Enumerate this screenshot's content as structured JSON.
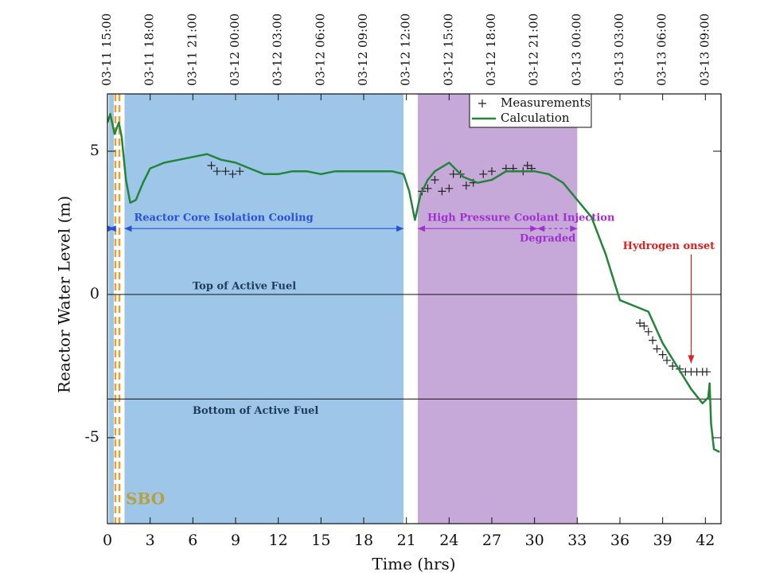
{
  "chart_data": {
    "type": "line",
    "xlabel": "Time (hrs)",
    "ylabel": "Reactor Water Level (m)",
    "xlim": [
      0,
      43.1
    ],
    "ylim": [
      -8,
      7
    ],
    "xticks": [
      0,
      3,
      6,
      9,
      12,
      15,
      18,
      21,
      24,
      27,
      30,
      33,
      36,
      39,
      42
    ],
    "yticks": [
      -5,
      0,
      5
    ],
    "x2ticks": [
      {
        "value": 0,
        "label": "03-11 15:00"
      },
      {
        "value": 3,
        "label": "03-11 18:00"
      },
      {
        "value": 6,
        "label": "03-11 21:00"
      },
      {
        "value": 9,
        "label": "03-12 00:00"
      },
      {
        "value": 12,
        "label": "03-12 03:00"
      },
      {
        "value": 15,
        "label": "03-12 06:00"
      },
      {
        "value": 18,
        "label": "03-12 09:00"
      },
      {
        "value": 21,
        "label": "03-12 12:00"
      },
      {
        "value": 24,
        "label": "03-12 15:00"
      },
      {
        "value": 27,
        "label": "03-12 18:00"
      },
      {
        "value": 30,
        "label": "03-12 21:00"
      },
      {
        "value": 33,
        "label": "03-13 00:00"
      },
      {
        "value": 36,
        "label": "03-13 03:00"
      },
      {
        "value": 39,
        "label": "03-13 06:00"
      },
      {
        "value": 42,
        "label": "03-13 09:00"
      }
    ],
    "legend": "upper center",
    "series": [
      {
        "name": "Measurements",
        "color": "#222222",
        "marker": "+",
        "x": [
          7.3,
          7.7,
          8.3,
          8.8,
          9.3,
          22.1,
          22.5,
          23.0,
          23.5,
          24.0,
          24.3,
          24.8,
          25.2,
          25.7,
          26.4,
          27.0,
          28.0,
          28.5,
          29.2,
          29.5,
          29.8,
          37.4,
          37.7,
          38.0,
          38.3,
          38.6,
          39.0,
          39.3,
          39.7,
          40.2,
          40.6,
          41.0,
          41.4,
          41.8,
          42.1
        ],
        "values": [
          4.5,
          4.3,
          4.3,
          4.2,
          4.3,
          3.6,
          3.7,
          4.0,
          3.6,
          3.7,
          4.2,
          4.2,
          3.8,
          3.9,
          4.2,
          4.3,
          4.4,
          4.4,
          4.3,
          4.5,
          4.4,
          -1.0,
          -1.1,
          -1.3,
          -1.6,
          -1.9,
          -2.1,
          -2.3,
          -2.5,
          -2.6,
          -2.7,
          -2.7,
          -2.7,
          -2.7,
          -2.7
        ]
      },
      {
        "name": "Calculation",
        "color": "#23843a",
        "x": [
          0,
          0.2,
          0.5,
          0.8,
          1.0,
          1.3,
          1.6,
          2.0,
          2.5,
          3,
          4,
          5,
          6,
          7,
          8,
          9,
          10,
          11,
          12,
          13,
          14,
          15,
          16,
          17,
          18,
          19,
          20,
          20.8,
          21.2,
          21.6,
          22,
          22.5,
          23,
          24,
          25,
          26,
          27,
          28,
          29,
          30,
          31,
          32,
          33,
          34,
          35,
          36,
          37,
          38,
          39,
          40,
          41,
          41.8,
          42.2,
          42.3,
          42.4,
          42.6,
          43
        ],
        "values": [
          6.0,
          6.3,
          5.6,
          6.0,
          5.5,
          4.0,
          3.2,
          3.3,
          3.9,
          4.4,
          4.6,
          4.7,
          4.8,
          4.9,
          4.7,
          4.6,
          4.4,
          4.2,
          4.2,
          4.3,
          4.3,
          4.2,
          4.3,
          4.3,
          4.3,
          4.3,
          4.3,
          4.2,
          3.6,
          2.6,
          3.5,
          4.0,
          4.3,
          4.6,
          4.1,
          3.9,
          4.0,
          4.3,
          4.3,
          4.3,
          4.2,
          3.9,
          3.3,
          2.7,
          1.4,
          -0.2,
          -0.4,
          -0.6,
          -1.7,
          -2.5,
          -3.3,
          -3.8,
          -3.6,
          -3.1,
          -4.5,
          -5.4,
          -5.5
        ]
      }
    ],
    "spans": [
      {
        "x": [
          0.1,
          0.45
        ],
        "color": "#9dc6e8"
      },
      {
        "x": [
          1.2,
          20.8
        ],
        "color": "#9dc6e8"
      },
      {
        "x": [
          21.8,
          33
        ],
        "color": "#c6a8d9"
      }
    ],
    "vlines": [
      {
        "x": 0.56,
        "color": "#e8a030"
      },
      {
        "x": 0.84,
        "color": "#e8a030"
      }
    ],
    "hlines": [
      {
        "y": 0,
        "label": "Top of Active Fuel"
      },
      {
        "y": -3.65,
        "label": "Bottom of Active Fuel"
      }
    ],
    "arrows": [
      {
        "x": [
          0.1,
          0.5
        ],
        "y": 2.3,
        "color": "#2b50d8"
      },
      {
        "x": [
          1.2,
          20.8
        ],
        "y": 2.3,
        "color": "#2b50d8",
        "label": "Reactor Core Isolation Cooling"
      },
      {
        "x": [
          21.8,
          30.2
        ],
        "y": 2.3,
        "color": "#a030d0",
        "label": "High Pressure Coolant Injection"
      },
      {
        "x": [
          30.2,
          33
        ],
        "y": 2.3,
        "color": "#a030d0",
        "label": "Degraded",
        "dashed": true
      }
    ],
    "hydrogen": {
      "label": "Hydrogen onset",
      "x": 41,
      "y": [
        1.4,
        -2.4
      ],
      "color": "#e02020"
    },
    "sbo": {
      "label": "SBO",
      "color": "#b8a040"
    }
  }
}
